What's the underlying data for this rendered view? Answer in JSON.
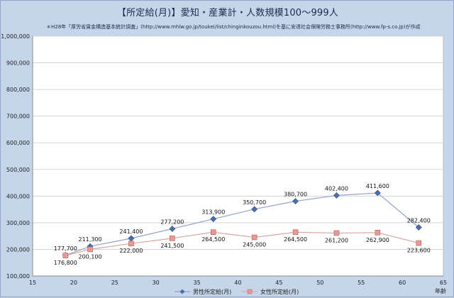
{
  "title": "【所定給(月)】愛知・産業計・人数規模100～999人",
  "source": "＊H28年「厚労省賃金構造基本統計調査」(http://www.mhlw.go.jp/toukei/list/chinginkouzou.html)を基に安達社会保険労務士事務所(http://www.fp-s.co.jp)が作成",
  "chart_data": {
    "type": "line",
    "title": "【所定給(月)】愛知・産業計・人数規模100～999人",
    "xlabel": "年齢",
    "ylabel": "",
    "xlim": [
      15,
      65
    ],
    "ylim": [
      100000,
      1000000
    ],
    "xticks": [
      15,
      20,
      25,
      30,
      35,
      40,
      45,
      50,
      55,
      60,
      65
    ],
    "yticks": [
      100000,
      200000,
      300000,
      400000,
      500000,
      600000,
      700000,
      800000,
      900000,
      1000000
    ],
    "ytick_labels": [
      "100,000",
      "200,000",
      "300,000",
      "400,000",
      "500,000",
      "600,000",
      "700,000",
      "800,000",
      "900,000",
      "1,000,000"
    ],
    "grid": "horizontal",
    "legend_position": "bottom",
    "series": [
      {
        "name": "男性所定給(月)",
        "color": "#4a6ea8",
        "line_color": "#8fa3c4",
        "marker": "diamond",
        "label_position": "above",
        "x": [
          19,
          22,
          27,
          32,
          37,
          42,
          47,
          52,
          57,
          62
        ],
        "y": [
          177700,
          211300,
          241400,
          277200,
          313900,
          350700,
          380700,
          402400,
          411600,
          282400
        ],
        "labels": [
          "177,700",
          "211,300",
          "241,400",
          "277,200",
          "313,900",
          "350,700",
          "380,700",
          "402,400",
          "411,600",
          "282,400"
        ]
      },
      {
        "name": "女性所定給(月)",
        "color": "#e59a96",
        "line_color": "#d9a5a2",
        "marker": "square",
        "label_position": "below",
        "x": [
          19,
          22,
          27,
          32,
          37,
          42,
          47,
          52,
          57,
          62
        ],
        "y": [
          176800,
          200100,
          222000,
          241500,
          264500,
          245000,
          264500,
          261200,
          262900,
          223600
        ],
        "labels": [
          "176,800",
          "200,100",
          "222,000",
          "241,500",
          "264,500",
          "245,000",
          "264,500",
          "261,200",
          "262,900",
          "223,600"
        ]
      }
    ]
  }
}
